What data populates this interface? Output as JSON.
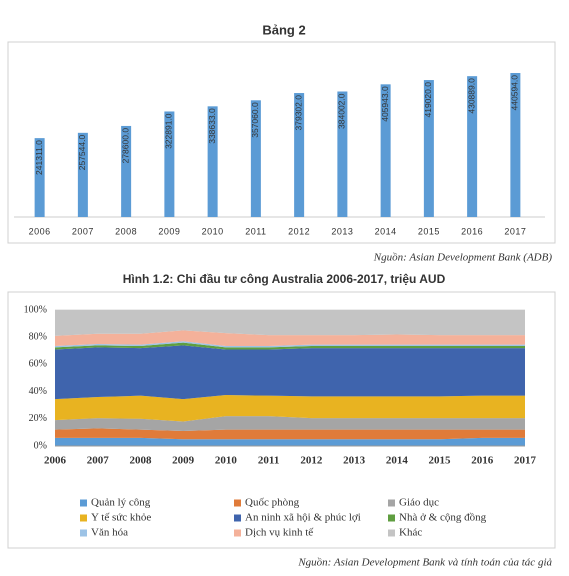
{
  "chart_data": [
    {
      "type": "bar",
      "title": "Bảng 2",
      "categories": [
        "2006",
        "2007",
        "2008",
        "2009",
        "2010",
        "2011",
        "2012",
        "2013",
        "2014",
        "2015",
        "2016",
        "2017"
      ],
      "values": [
        241311,
        257544,
        278600,
        322891,
        338633,
        357060,
        379302,
        384002,
        405943,
        419020,
        430889,
        440594
      ],
      "value_labels": [
        "241311.0",
        "257544.0",
        "278600.0",
        "322891.0",
        "338633.0",
        "357060.0",
        "379302.0",
        "384002.0",
        "405943.0",
        "419020.0",
        "430889.0",
        "440594.0"
      ],
      "color": "#5b9bd5",
      "source": "Nguồn: Asian Development Bank (ADB)"
    },
    {
      "type": "stacked_area",
      "title": "Hình 1.2: Chi đầu tư công Australia 2006-2017, triệu AUD",
      "categories": [
        "2006",
        "2007",
        "2008",
        "2009",
        "2010",
        "2011",
        "2012",
        "2013",
        "2014",
        "2015",
        "2016",
        "2017"
      ],
      "series": [
        {
          "name": "Quản lý công",
          "color": "#5b9bd5",
          "values": [
            6,
            6,
            6,
            5,
            5,
            5,
            5,
            5,
            5,
            5,
            6,
            6
          ]
        },
        {
          "name": "Quốc phòng",
          "color": "#e07b39",
          "values": [
            6,
            7,
            6,
            6,
            7,
            7,
            7,
            7,
            7,
            7,
            6,
            6
          ]
        },
        {
          "name": "Giáo dục",
          "color": "#a5a5a5",
          "values": [
            7,
            7.5,
            8,
            7,
            10,
            10,
            8.5,
            8.5,
            8.5,
            8.5,
            8.5,
            8.5
          ]
        },
        {
          "name": "Y tế sức khỏe",
          "color": "#e8b321",
          "values": [
            15.5,
            15.5,
            17,
            16.5,
            15.5,
            15,
            16,
            16,
            16,
            16,
            16.5,
            16.5
          ]
        },
        {
          "name": "An ninh xã hội & phúc lợi",
          "color": "#3f64ad",
          "values": [
            36.5,
            36.5,
            35,
            39.5,
            33.5,
            34,
            35.5,
            35.5,
            35.5,
            35.5,
            35,
            35
          ]
        },
        {
          "name": "Nhà ở & cộng đồng",
          "color": "#5f9e40",
          "values": [
            1.5,
            1.5,
            1.5,
            2,
            1.5,
            1.5,
            1.5,
            1.5,
            1.5,
            1.5,
            1.5,
            1.5
          ]
        },
        {
          "name": "Văn hóa",
          "color": "#9dc3e6",
          "values": [
            1,
            1,
            1,
            1,
            1,
            1,
            1,
            1,
            1,
            1,
            1,
            1
          ]
        },
        {
          "name": "Dịch vụ kinh tế",
          "color": "#f4b19a",
          "values": [
            7.5,
            7.5,
            8,
            8,
            9.5,
            8,
            7,
            7,
            7.5,
            7,
            7,
            7
          ]
        },
        {
          "name": "Khác",
          "color": "#c4c4c4",
          "values": [
            19,
            17.5,
            17.5,
            15,
            17,
            18.5,
            18.5,
            18.5,
            18,
            18.5,
            18.5,
            18.5
          ]
        }
      ],
      "ylim": [
        0,
        100
      ],
      "yticks": [
        {
          "value": 0,
          "label": "0%"
        },
        {
          "value": 20,
          "label": "20%"
        },
        {
          "value": 40,
          "label": "40%"
        },
        {
          "value": 60,
          "label": "60%"
        },
        {
          "value": 80,
          "label": "80%"
        },
        {
          "value": 100,
          "label": "100%"
        }
      ],
      "grid": true,
      "source": "Nguồn: Asian Development Bank và tính toán của tác giả"
    }
  ]
}
